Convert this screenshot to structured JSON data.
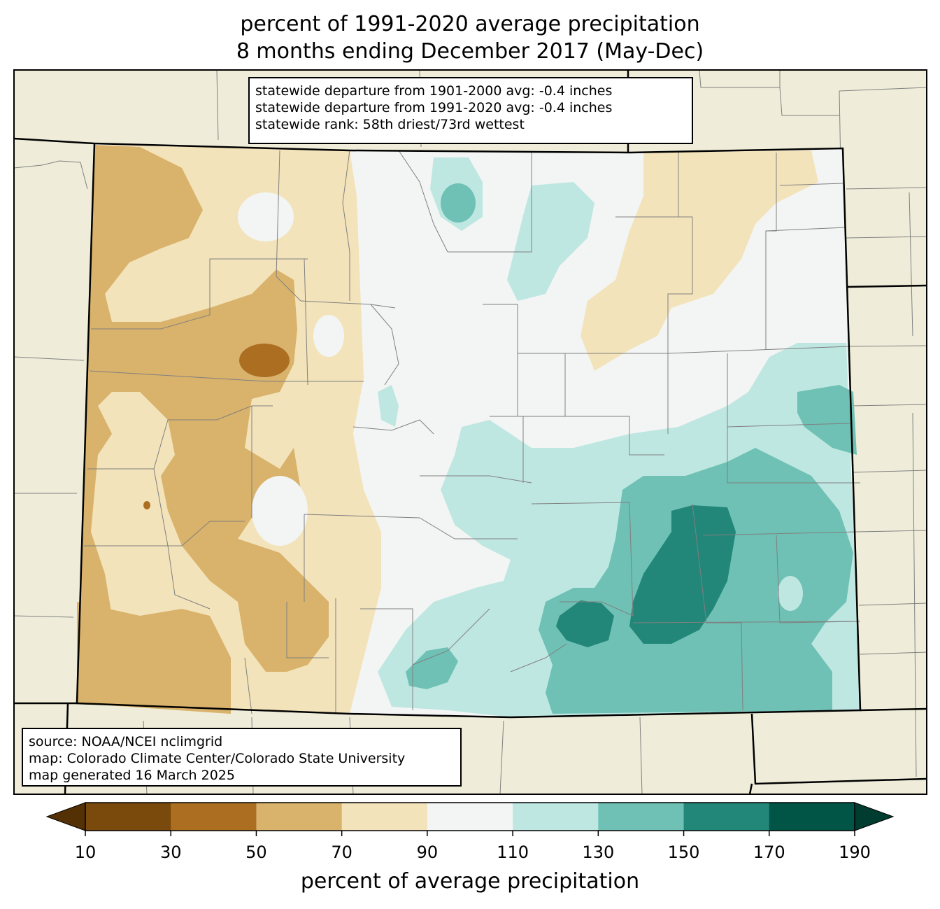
{
  "title": {
    "line1": "percent of 1991-2020 average precipitation",
    "line2": "8 months ending December 2017 (May-Dec)"
  },
  "stats": {
    "line1": "statewide departure from 1901-2000 avg: -0.4 inches",
    "line2": "statewide departure from 1991-2020 avg: -0.4 inches",
    "line3": "statewide rank: 58th driest/73rd wettest"
  },
  "source": {
    "line1": "source: NOAA/NCEI nclimgrid",
    "line2": "map: Colorado Climate Center/Colorado State University",
    "line3": "map generated 16 March 2025"
  },
  "colorbar": {
    "label": "percent of average precipitation",
    "ticks": [
      "10",
      "30",
      "50",
      "70",
      "90",
      "110",
      "130",
      "150",
      "170",
      "190"
    ],
    "under_color": "#543005",
    "over_color": "#003c30",
    "colors": [
      "#7a4a0d",
      "#ac6f22",
      "#d9b26b",
      "#f3e3ba",
      "#f3f5f4",
      "#bfe7e2",
      "#6ec1b4",
      "#228679",
      "#005547"
    ]
  },
  "colors": {
    "background_land": "#efedd9",
    "county_lines": "#808080",
    "state_lines": "#000000"
  }
}
